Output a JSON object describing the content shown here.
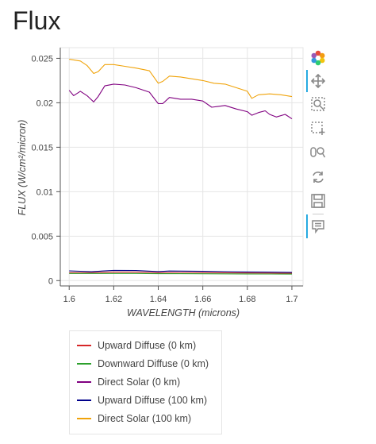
{
  "page": {
    "title": "Flux"
  },
  "toolbar": {
    "tools": [
      {
        "name": "bokeh-logo-icon"
      },
      {
        "name": "pan-tool-icon"
      },
      {
        "name": "box-zoom-tool-icon"
      },
      {
        "name": "box-select-tool-icon"
      },
      {
        "name": "wheel-zoom-tool-icon"
      },
      {
        "name": "reset-tool-icon"
      },
      {
        "name": "save-tool-icon"
      },
      {
        "name": "hover-tool-icon"
      }
    ]
  },
  "chart_data": {
    "type": "line",
    "title": "",
    "xlabel": "WAVELENGTH (microns)",
    "ylabel": "FLUX (W/cm²/micron)",
    "xlim": [
      1.596,
      1.705
    ],
    "ylim": [
      -0.0006,
      0.0262
    ],
    "xticks": [
      1.6,
      1.62,
      1.64,
      1.66,
      1.68,
      1.7
    ],
    "xtick_labels": [
      "1.6",
      "1.62",
      "1.64",
      "1.66",
      "1.68",
      "1.7"
    ],
    "yticks": [
      0,
      0.005,
      0.01,
      0.015,
      0.02,
      0.025
    ],
    "ytick_labels": [
      "0",
      "0.005",
      "0.01",
      "0.015",
      "0.02",
      "0.025"
    ],
    "grid": true,
    "legend_position": "below",
    "series": [
      {
        "name": "Upward Diffuse (0 km)",
        "color": "#d62728",
        "x": [
          1.6,
          1.61,
          1.62,
          1.63,
          1.64,
          1.65,
          1.66,
          1.67,
          1.68,
          1.69,
          1.7
        ],
        "y": [
          0.0009,
          0.0009,
          0.00095,
          0.00095,
          0.0009,
          0.00092,
          0.0009,
          0.00088,
          0.00086,
          0.00085,
          0.00082
        ]
      },
      {
        "name": "Downward Diffuse (0 km)",
        "color": "#2ca02c",
        "x": [
          1.6,
          1.61,
          1.62,
          1.63,
          1.64,
          1.65,
          1.66,
          1.67,
          1.68,
          1.69,
          1.7
        ],
        "y": [
          0.0008,
          0.0008,
          0.0008,
          0.0008,
          0.00078,
          0.00078,
          0.00077,
          0.00076,
          0.00075,
          0.00074,
          0.00073
        ]
      },
      {
        "name": "Direct Solar (0 km)",
        "color": "#800080",
        "x": [
          1.6,
          1.602,
          1.605,
          1.608,
          1.611,
          1.613,
          1.616,
          1.62,
          1.625,
          1.63,
          1.636,
          1.64,
          1.642,
          1.645,
          1.65,
          1.655,
          1.66,
          1.664,
          1.667,
          1.67,
          1.675,
          1.68,
          1.682,
          1.685,
          1.688,
          1.69,
          1.693,
          1.697,
          1.7
        ],
        "y": [
          0.0214,
          0.0208,
          0.0213,
          0.0208,
          0.0201,
          0.0207,
          0.0219,
          0.0221,
          0.022,
          0.0217,
          0.0212,
          0.0199,
          0.0199,
          0.0206,
          0.0204,
          0.0204,
          0.0202,
          0.0195,
          0.0196,
          0.0197,
          0.0193,
          0.019,
          0.0186,
          0.0189,
          0.0191,
          0.0187,
          0.0184,
          0.0187,
          0.0182
        ]
      },
      {
        "name": "Upward Diffuse (100 km)",
        "color": "#00008b",
        "x": [
          1.6,
          1.605,
          1.61,
          1.615,
          1.62,
          1.63,
          1.64,
          1.645,
          1.65,
          1.66,
          1.67,
          1.68,
          1.69,
          1.7
        ],
        "y": [
          0.0011,
          0.00105,
          0.001,
          0.00108,
          0.00115,
          0.00113,
          0.00102,
          0.00108,
          0.00107,
          0.00104,
          0.00101,
          0.00097,
          0.00095,
          0.00093
        ]
      },
      {
        "name": "Direct Solar (100 km)",
        "color": "#f0a30a",
        "x": [
          1.6,
          1.605,
          1.608,
          1.611,
          1.613,
          1.616,
          1.62,
          1.625,
          1.63,
          1.636,
          1.64,
          1.642,
          1.645,
          1.65,
          1.655,
          1.66,
          1.665,
          1.67,
          1.675,
          1.68,
          1.682,
          1.685,
          1.69,
          1.695,
          1.7
        ],
        "y": [
          0.0249,
          0.0247,
          0.0242,
          0.0233,
          0.0235,
          0.0243,
          0.0243,
          0.0241,
          0.0239,
          0.0236,
          0.0222,
          0.0224,
          0.023,
          0.0229,
          0.0227,
          0.0225,
          0.0222,
          0.0221,
          0.0217,
          0.0213,
          0.0205,
          0.0209,
          0.021,
          0.0209,
          0.0207
        ]
      }
    ]
  }
}
